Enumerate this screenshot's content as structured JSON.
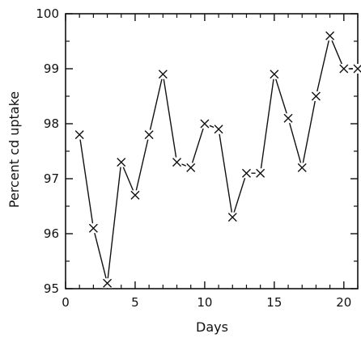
{
  "chart_data": {
    "type": "line",
    "marker": "x",
    "grid": false,
    "xlabel": "Days",
    "ylabel": "Percent cd uptake",
    "xlim": [
      0,
      21
    ],
    "ylim": [
      95,
      100
    ],
    "x_ticks": [
      0,
      5,
      10,
      15,
      20
    ],
    "x_minor_ticks": [
      1,
      2,
      3,
      4,
      6,
      7,
      8,
      9,
      11,
      12,
      13,
      14,
      16,
      17,
      18,
      19,
      21
    ],
    "y_ticks": [
      95,
      96,
      97,
      98,
      99,
      100
    ],
    "y_minor_ticks": [
      95.5,
      96.5,
      97.5,
      98.5,
      99.5
    ],
    "series": [
      {
        "x": [
          1,
          2,
          3,
          4,
          5,
          6,
          7,
          8,
          9,
          10,
          11,
          12,
          13,
          14,
          15,
          16,
          17,
          18,
          19,
          20,
          21
        ],
        "y": [
          97.8,
          96.1,
          95.1,
          97.3,
          96.7,
          97.8,
          98.9,
          97.3,
          97.2,
          98.0,
          97.9,
          96.3,
          97.1,
          97.1,
          98.9,
          98.1,
          97.2,
          98.5,
          99.6,
          99.0,
          99.0
        ]
      }
    ]
  }
}
